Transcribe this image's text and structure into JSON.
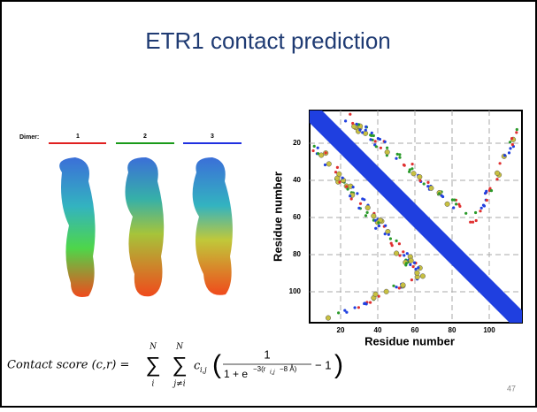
{
  "slide": {
    "title": "ETR1 contact prediction",
    "dimer_legend": {
      "label": "Dimer:",
      "items": [
        "1",
        "2",
        "3"
      ]
    },
    "contact_map": {
      "y_axis_label": "Residue number",
      "x_axis_label": "Residue number",
      "y_ticks": [
        "20",
        "40",
        "60",
        "80",
        "100"
      ],
      "x_ticks": [
        "20",
        "40",
        "60",
        "80",
        "100"
      ]
    },
    "formula": {
      "lhs": "Contact score (c,r) =",
      "sum1_top": "N",
      "sum1_bottom": "i",
      "sum2_top": "N",
      "sum2_bottom": "j≠i",
      "coef": "c",
      "coef_sub": "i,j",
      "numerator": "1",
      "denominator_base": "1 + e",
      "exponent_start": "−3(r",
      "exponent_sub": "i,j",
      "exponent_end": "−8 Å)",
      "tail": "− 1"
    },
    "page_number": "47"
  }
}
